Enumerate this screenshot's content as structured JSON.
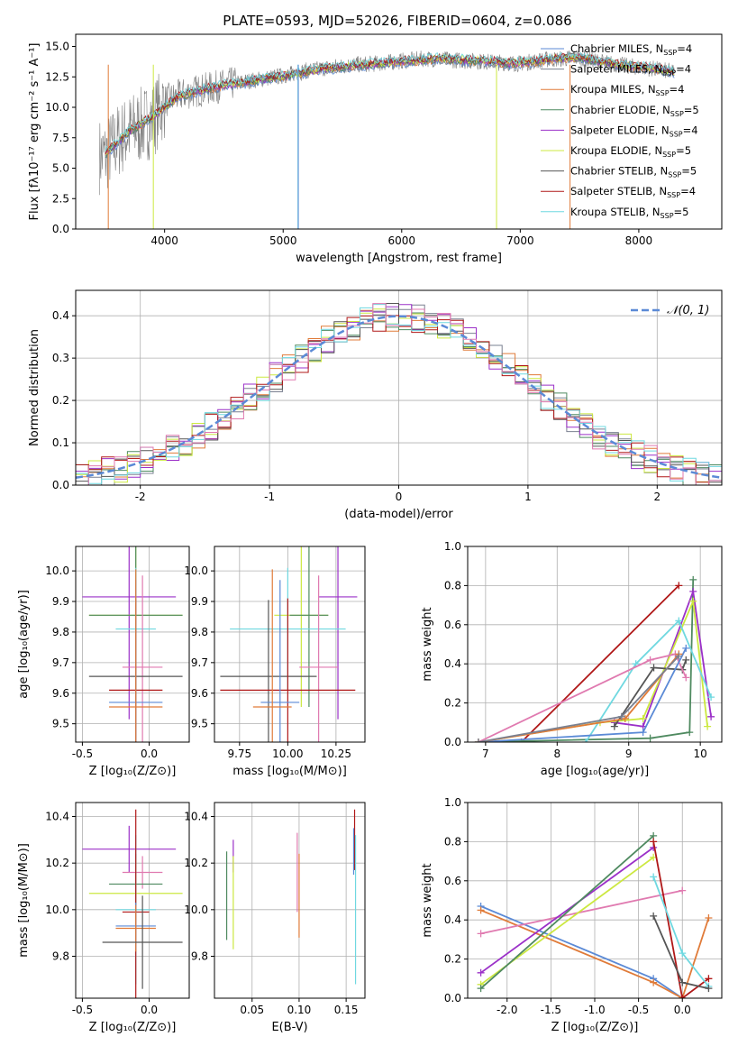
{
  "figure_title": "PLATE=0593, MJD=52026, FIBERID=0604, z=0.086",
  "colors": {
    "Chabrier MILES": "#5b8ad6",
    "Salpeter MILES": "#7a8090",
    "Kroupa MILES": "#e07b39",
    "Chabrier ELODIE": "#4f8a60",
    "Salpeter ELODIE": "#9b30c8",
    "Kroupa ELODIE": "#cce840",
    "Chabrier STELIB": "#555555",
    "Salpeter STELIB": "#b01818",
    "Kroupa STELIB": "#6fd8e0",
    "extra_pink": "#e07ab0",
    "gaussian": "#5b8ad6"
  },
  "chart_data": [
    {
      "type": "line",
      "title": "PLATE=0593, MJD=52026, FIBERID=0604, z=0.086",
      "xlabel": "wavelength [Angstrom, rest frame]",
      "ylabel": "Flux [fλ10⁻¹⁷ erg cm⁻² s⁻¹ A⁻¹]",
      "xlim": [
        3250,
        8700
      ],
      "ylim": [
        0,
        16
      ],
      "xticks": [
        4000,
        5000,
        6000,
        7000,
        8000
      ],
      "yticks": [
        0.0,
        2.5,
        5.0,
        7.5,
        10.0,
        12.5,
        15.0
      ],
      "legend_position": "right",
      "legend": [
        {
          "name": "Chabrier MILES",
          "label": "Chabrier MILES, N_SSP=4"
        },
        {
          "name": "Salpeter MILES",
          "label": "Salpeter MILES, N_SSP=4"
        },
        {
          "name": "Kroupa MILES",
          "label": "Kroupa MILES, N_SSP=4"
        },
        {
          "name": "Chabrier ELODIE",
          "label": "Chabrier ELODIE, N_SSP=5"
        },
        {
          "name": "Salpeter ELODIE",
          "label": "Salpeter ELODIE, N_SSP=4"
        },
        {
          "name": "Kroupa ELODIE",
          "label": "Kroupa ELODIE, N_SSP=5"
        },
        {
          "name": "Chabrier STELIB",
          "label": "Chabrier STELIB, N_SSP=5"
        },
        {
          "name": "Salpeter STELIB",
          "label": "Salpeter STELIB, N_SSP=4"
        },
        {
          "name": "Kroupa STELIB",
          "label": "Kroupa STELIB, N_SSP=5"
        }
      ],
      "continuum": {
        "x": [
          3500,
          3600,
          3700,
          3800,
          3900,
          4000,
          4200,
          4400,
          4600,
          4800,
          5000,
          5200,
          5400,
          5600,
          5800,
          6000,
          6200,
          6400,
          6600,
          6800,
          7000,
          7200,
          7400
        ],
        "y": [
          6.0,
          7.2,
          8.0,
          8.5,
          9.0,
          10.5,
          11.2,
          11.6,
          12.0,
          12.3,
          12.6,
          13.0,
          13.3,
          13.5,
          13.6,
          13.8,
          14.0,
          13.9,
          13.8,
          13.7,
          13.6,
          13.9,
          14.0
        ]
      },
      "models_x": [
        3500,
        3700,
        3900,
        4100,
        4300,
        4500,
        4700,
        4900,
        5100,
        5300,
        5500,
        5700,
        5900,
        6100,
        6300,
        6500,
        6700,
        6900,
        7100,
        7300,
        7500,
        7700,
        7900,
        8100,
        8300
      ],
      "models_y": [
        6.2,
        8.0,
        9.2,
        10.8,
        11.4,
        11.8,
        12.1,
        12.4,
        12.7,
        13.1,
        13.3,
        13.5,
        13.7,
        13.8,
        14.0,
        13.9,
        13.8,
        13.6,
        13.7,
        14.0,
        14.1,
        13.7,
        13.4,
        13.2,
        12.9
      ]
    },
    {
      "type": "line",
      "xlabel": "(data-model)/error",
      "ylabel": "Normed distribution",
      "xlim": [
        -2.5,
        2.5
      ],
      "ylim": [
        0,
        0.46
      ],
      "xticks": [
        -2,
        -1,
        0,
        1,
        2
      ],
      "yticks": [
        0.0,
        0.1,
        0.2,
        0.3,
        0.4
      ],
      "legend_position": "top-right",
      "legend": [
        {
          "name": "gaussian",
          "label": "𝒩(0, 1)"
        }
      ],
      "bin_width": 0.1,
      "bin_start": -2.5,
      "gaussian": {
        "mean": 0,
        "sigma": 1
      }
    },
    {
      "type": "scatter",
      "xlabel": "Z [log₁₀(Z/Z⊙)]",
      "ylabel": "age  [log₁₀(age/yr)]",
      "xlim": [
        -0.55,
        0.3
      ],
      "ylim": [
        9.44,
        10.08
      ],
      "xticks": [
        -0.5,
        0.0
      ],
      "yticks": [
        9.5,
        9.6,
        9.7,
        9.8,
        9.9,
        10.0
      ],
      "points": [
        {
          "name": "Salpeter ELODIE",
          "x": -0.15,
          "xerr": 0.35,
          "y": 9.915,
          "yerr": 0.4
        },
        {
          "name": "Kroupa ELODIE",
          "x": -0.1,
          "xerr": 0.35,
          "y": 9.855,
          "yerr": 0.3
        },
        {
          "name": "Chabrier ELODIE",
          "x": -0.1,
          "xerr": 0.35,
          "y": 9.855,
          "yerr": 0.3
        },
        {
          "name": "Kroupa STELIB",
          "x": -0.1,
          "xerr": 0.15,
          "y": 9.81,
          "yerr": 0.2
        },
        {
          "name": "extra_pink",
          "x": -0.05,
          "xerr": 0.15,
          "y": 9.685,
          "yerr": 0.3
        },
        {
          "name": "Chabrier STELIB",
          "x": -0.1,
          "xerr": 0.35,
          "y": 9.655,
          "yerr": 0.25
        },
        {
          "name": "Salpeter STELIB",
          "x": -0.1,
          "xerr": 0.2,
          "y": 9.61,
          "yerr": 0.3
        },
        {
          "name": "Chabrier MILES",
          "x": -0.1,
          "xerr": 0.2,
          "y": 9.57,
          "yerr": 0.4
        },
        {
          "name": "Kroupa MILES",
          "x": -0.1,
          "xerr": 0.2,
          "y": 9.555,
          "yerr": 0.45
        }
      ]
    },
    {
      "type": "scatter",
      "xlabel": "mass [log₁₀(M/M⊙)]",
      "xlim": [
        9.62,
        10.4
      ],
      "ylim": [
        9.44,
        10.08
      ],
      "xticks": [
        9.75,
        10.0,
        10.25
      ],
      "yticks": [
        9.5,
        9.6,
        9.7,
        9.8,
        9.9,
        10.0
      ],
      "points": [
        {
          "name": "Salpeter ELODIE",
          "x": 10.26,
          "xerr": 0.1,
          "y": 9.915,
          "yerr": 0.4
        },
        {
          "name": "Kroupa ELODIE",
          "x": 10.07,
          "xerr": 0.14,
          "y": 9.855,
          "yerr": 0.3
        },
        {
          "name": "Chabrier ELODIE",
          "x": 10.11,
          "xerr": 0.1,
          "y": 9.855,
          "yerr": 0.3
        },
        {
          "name": "Kroupa STELIB",
          "x": 10.0,
          "xerr": 0.3,
          "y": 9.81,
          "yerr": 0.2
        },
        {
          "name": "extra_pink",
          "x": 10.16,
          "xerr": 0.1,
          "y": 9.685,
          "yerr": 0.3
        },
        {
          "name": "Chabrier STELIB",
          "x": 9.9,
          "xerr": 0.25,
          "y": 9.655,
          "yerr": 0.25
        },
        {
          "name": "Salpeter STELIB",
          "x": 10.0,
          "xerr": 0.35,
          "y": 9.61,
          "yerr": 0.3
        },
        {
          "name": "Chabrier MILES",
          "x": 9.96,
          "xerr": 0.1,
          "y": 9.57,
          "yerr": 0.4
        },
        {
          "name": "Kroupa MILES",
          "x": 9.92,
          "xerr": 0.1,
          "y": 9.555,
          "yerr": 0.45
        }
      ]
    },
    {
      "type": "line",
      "xlabel": "age  [log₁₀(age/yr)]",
      "ylabel": "mass weight",
      "xlim": [
        6.75,
        10.3
      ],
      "ylim": [
        0,
        1
      ],
      "xticks": [
        7,
        8,
        9,
        10
      ],
      "yticks": [
        0.0,
        0.2,
        0.4,
        0.6,
        0.8,
        1.0
      ],
      "series": [
        {
          "name": "Salpeter STELIB",
          "x": [
            7.5,
            9.7
          ],
          "y": [
            0.0,
            0.8
          ]
        },
        {
          "name": "Chabrier ELODIE",
          "x": [
            6.9,
            9.3,
            9.85,
            9.9
          ],
          "y": [
            0.0,
            0.02,
            0.05,
            0.83
          ]
        },
        {
          "name": "Salpeter ELODIE",
          "x": [
            8.8,
            9.2,
            9.9,
            10.15
          ],
          "y": [
            0.1,
            0.08,
            0.77,
            0.13
          ]
        },
        {
          "name": "Kroupa ELODIE",
          "x": [
            6.9,
            8.6,
            9.2,
            9.9,
            10.1
          ],
          "y": [
            0.0,
            0.1,
            0.12,
            0.72,
            0.08
          ]
        },
        {
          "name": "Kroupa STELIB",
          "x": [
            8.4,
            9.1,
            9.7,
            10.15
          ],
          "y": [
            0.0,
            0.4,
            0.62,
            0.23
          ]
        },
        {
          "name": "Chabrier STELIB",
          "x": [
            8.8,
            9.35,
            9.75,
            9.8
          ],
          "y": [
            0.08,
            0.38,
            0.37,
            0.42
          ]
        },
        {
          "name": "extra_pink",
          "x": [
            6.9,
            9.3,
            9.65,
            9.8
          ],
          "y": [
            0.0,
            0.42,
            0.45,
            0.33
          ]
        },
        {
          "name": "Chabrier MILES",
          "x": [
            6.9,
            9.2,
            9.8
          ],
          "y": [
            0.0,
            0.05,
            0.48
          ]
        },
        {
          "name": "Kroupa MILES",
          "x": [
            6.9,
            8.95,
            9.7
          ],
          "y": [
            0.0,
            0.12,
            0.45
          ]
        },
        {
          "name": "Salpeter MILES",
          "x": [
            6.9,
            8.9,
            9.7
          ],
          "y": [
            0.0,
            0.13,
            0.44
          ]
        }
      ]
    },
    {
      "type": "scatter",
      "xlabel": "Z [log₁₀(Z/Z⊙)]",
      "ylabel": "mass [log₁₀(M/M⊙)]",
      "xlim": [
        -0.55,
        0.3
      ],
      "ylim": [
        9.62,
        10.46
      ],
      "xticks": [
        -0.5,
        0.0
      ],
      "yticks": [
        9.8,
        10.0,
        10.2,
        10.4
      ],
      "points": [
        {
          "name": "Salpeter ELODIE",
          "x": -0.15,
          "xerr": 0.35,
          "y": 10.26,
          "yerr": 0.1
        },
        {
          "name": "extra_pink",
          "x": -0.05,
          "xerr": 0.15,
          "y": 10.16,
          "yerr": 0.07
        },
        {
          "name": "Chabrier ELODIE",
          "x": -0.1,
          "xerr": 0.2,
          "y": 10.11,
          "yerr": 0.13
        },
        {
          "name": "Kroupa ELODIE",
          "x": -0.1,
          "xerr": 0.35,
          "y": 10.07,
          "yerr": 0.15
        },
        {
          "name": "Kroupa STELIB",
          "x": -0.1,
          "xerr": 0.15,
          "y": 10.0,
          "yerr": 0.32
        },
        {
          "name": "Salpeter STELIB",
          "x": -0.1,
          "xerr": 0.1,
          "y": 9.99,
          "yerr": 0.44
        },
        {
          "name": "Chabrier MILES",
          "x": -0.1,
          "xerr": 0.15,
          "y": 9.93,
          "yerr": 0.1
        },
        {
          "name": "Kroupa MILES",
          "x": -0.1,
          "xerr": 0.15,
          "y": 9.92,
          "yerr": 0.1
        },
        {
          "name": "Chabrier STELIB",
          "x": -0.05,
          "xerr": 0.3,
          "y": 9.86,
          "yerr": 0.2
        }
      ]
    },
    {
      "type": "scatter",
      "xlabel": "E(B-V)",
      "xlim": [
        0.01,
        0.17
      ],
      "ylim": [
        9.62,
        10.46
      ],
      "xticks": [
        0.05,
        0.1,
        0.15
      ],
      "yticks": [
        9.8,
        10.0,
        10.2,
        10.4
      ],
      "points": [
        {
          "name": "Chabrier ELODIE",
          "x": 0.023,
          "y": 10.06,
          "yerr": 0.19
        },
        {
          "name": "Salpeter ELODIE",
          "x": 0.03,
          "y": 10.23,
          "yerr": 0.07
        },
        {
          "name": "Kroupa ELODIE",
          "x": 0.03,
          "y": 10.03,
          "yerr": 0.2
        },
        {
          "name": "extra_pink",
          "x": 0.098,
          "y": 10.16,
          "yerr": 0.17
        },
        {
          "name": "Kroupa MILES",
          "x": 0.1,
          "y": 10.06,
          "yerr": 0.18
        },
        {
          "name": "Salpeter STELIB",
          "x": 0.159,
          "y": 10.3,
          "yerr": 0.13
        },
        {
          "name": "Kroupa STELIB",
          "x": 0.16,
          "y": 10.0,
          "yerr": 0.32
        },
        {
          "name": "Chabrier MILES",
          "x": 0.158,
          "y": 10.25,
          "yerr": 0.1
        }
      ]
    },
    {
      "type": "line",
      "xlabel": "Z [log₁₀(Z/Z⊙)]",
      "ylabel": "mass weight",
      "xlim": [
        -2.45,
        0.45
      ],
      "ylim": [
        0,
        1
      ],
      "xticks": [
        -2.0,
        -1.5,
        -1.0,
        -0.5,
        0.0
      ],
      "yticks": [
        0.0,
        0.2,
        0.4,
        0.6,
        0.8,
        1.0
      ],
      "series": [
        {
          "name": "Chabrier MILES",
          "x": [
            -2.3,
            -0.33,
            0.0
          ],
          "y": [
            0.47,
            0.1,
            0.0
          ]
        },
        {
          "name": "Kroupa MILES",
          "x": [
            -2.3,
            -0.33,
            0.0,
            0.3
          ],
          "y": [
            0.45,
            0.08,
            0.0,
            0.41
          ]
        },
        {
          "name": "extra_pink",
          "x": [
            -2.3,
            0.0
          ],
          "y": [
            0.33,
            0.55
          ]
        },
        {
          "name": "Salpeter ELODIE",
          "x": [
            -2.3,
            -0.33
          ],
          "y": [
            0.13,
            0.77
          ]
        },
        {
          "name": "Kroupa ELODIE",
          "x": [
            -2.3,
            -0.33
          ],
          "y": [
            0.07,
            0.72
          ]
        },
        {
          "name": "Chabrier ELODIE",
          "x": [
            -2.3,
            -0.33
          ],
          "y": [
            0.05,
            0.83
          ]
        },
        {
          "name": "Salpeter STELIB",
          "x": [
            -0.33,
            0.0,
            0.3
          ],
          "y": [
            0.8,
            0.0,
            0.1
          ]
        },
        {
          "name": "Kroupa STELIB",
          "x": [
            -0.33,
            0.0,
            0.3
          ],
          "y": [
            0.62,
            0.23,
            0.06
          ]
        },
        {
          "name": "Chabrier STELIB",
          "x": [
            -0.33,
            0.0,
            0.3
          ],
          "y": [
            0.42,
            0.08,
            0.05
          ]
        }
      ]
    }
  ]
}
